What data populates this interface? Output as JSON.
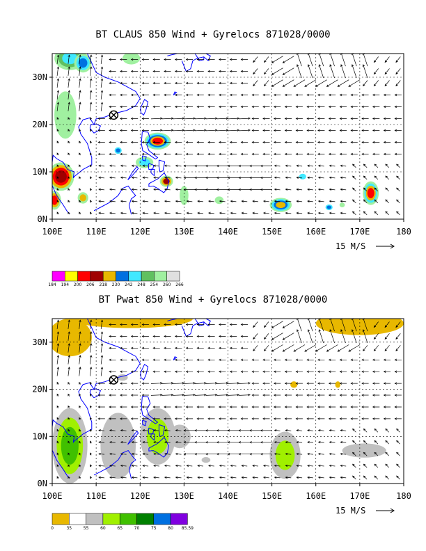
{
  "panels": [
    {
      "title": "BT CLAUS 850 Wind + Gyrelocs 871028/0000",
      "field": "claus",
      "lat_ticks": [
        "0N",
        "10N",
        "20N",
        "30N"
      ],
      "lon_ticks": [
        "100E",
        "110E",
        "120E",
        "130E",
        "140E",
        "150E",
        "160E",
        "170E",
        "180"
      ],
      "vector_scale_label": "15 M/S",
      "colorbar": {
        "colors": [
          "#ff00ff",
          "#ffff00",
          "#ff0000",
          "#a00000",
          "#e8b800",
          "#0070e0",
          "#40e8ff",
          "#60c060",
          "#a0f0a0",
          "#e0e0e0"
        ],
        "labels": [
          "184",
          "194",
          "200",
          "206",
          "218",
          "230",
          "242",
          "248",
          "254",
          "260",
          "266"
        ]
      }
    },
    {
      "title": "BT Pwat 850 Wind + Gyrelocs 871028/0000",
      "field": "pwat",
      "lat_ticks": [
        "0N",
        "10N",
        "20N",
        "30N"
      ],
      "lon_ticks": [
        "100E",
        "110E",
        "120E",
        "130E",
        "140E",
        "150E",
        "160E",
        "170E",
        "180"
      ],
      "vector_scale_label": "15 M/S",
      "colorbar": {
        "colors": [
          "#e8b800",
          "#ffffff",
          "#c0c0c0",
          "#a0f000",
          "#40c000",
          "#008000",
          "#0070e0",
          "#8000e0"
        ],
        "labels": [
          "0",
          "35",
          "55",
          "60",
          "65",
          "70",
          "75",
          "80",
          "85.59"
        ]
      }
    }
  ],
  "gyre_location": {
    "lon": 114,
    "lat": 22
  },
  "colors": {
    "coast": "#0000ff",
    "vectors": "#000000",
    "frame": "#000000"
  }
}
